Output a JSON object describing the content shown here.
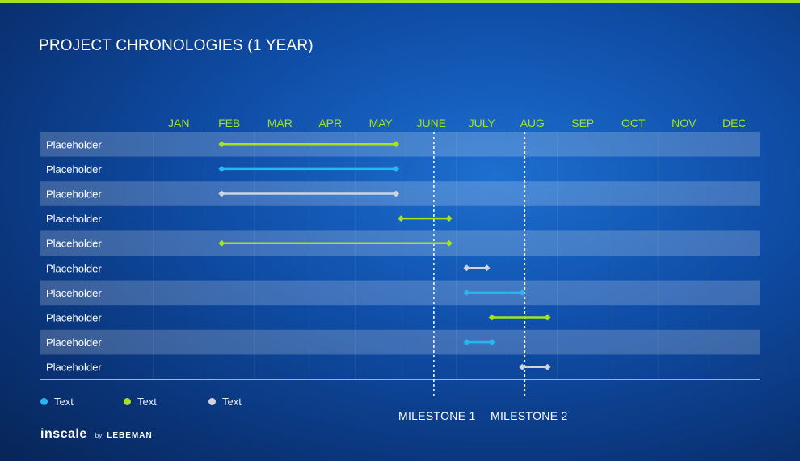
{
  "title": "PROJECT CHRONOLOGIES (1 YEAR)",
  "colors": {
    "green": "#a7e21c",
    "blue": "#29b6f0",
    "white": "#d0d4dc"
  },
  "legend": [
    {
      "label": "Text",
      "color": "#29b6f0"
    },
    {
      "label": "Text",
      "color": "#a7e21c"
    },
    {
      "label": "Text",
      "color": "#d0d4dc"
    }
  ],
  "milestones": [
    {
      "label": "MILESTONE 1",
      "month": 5.55
    },
    {
      "label": "MILESTONE 2",
      "month": 7.35
    }
  ],
  "brand": {
    "logo": "inscale",
    "by": "by",
    "partner": "LEBEMAN"
  },
  "chart_data": {
    "type": "gantt",
    "title": "PROJECT CHRONOLOGIES (1 YEAR)",
    "months": [
      "JAN",
      "FEB",
      "MAR",
      "APR",
      "MAY",
      "JUNE",
      "JULY",
      "AUG",
      "SEP",
      "OCT",
      "NOV",
      "DEC"
    ],
    "rows": [
      {
        "label": "Placeholder",
        "start": 1.35,
        "end": 4.8,
        "color": "#a7e21c"
      },
      {
        "label": "Placeholder",
        "start": 1.35,
        "end": 4.8,
        "color": "#29b6f0"
      },
      {
        "label": "Placeholder",
        "start": 1.35,
        "end": 4.8,
        "color": "#d0d4dc"
      },
      {
        "label": "Placeholder",
        "start": 4.9,
        "end": 5.85,
        "color": "#a7e21c"
      },
      {
        "label": "Placeholder",
        "start": 1.35,
        "end": 5.85,
        "color": "#a7e21c"
      },
      {
        "label": "Placeholder",
        "start": 6.2,
        "end": 6.6,
        "color": "#d0d4dc"
      },
      {
        "label": "Placeholder",
        "start": 6.2,
        "end": 7.3,
        "color": "#29b6f0"
      },
      {
        "label": "Placeholder",
        "start": 6.7,
        "end": 7.8,
        "color": "#a7e21c"
      },
      {
        "label": "Placeholder",
        "start": 6.2,
        "end": 6.7,
        "color": "#29b6f0"
      },
      {
        "label": "Placeholder",
        "start": 7.3,
        "end": 7.8,
        "color": "#d0d4dc"
      }
    ]
  }
}
